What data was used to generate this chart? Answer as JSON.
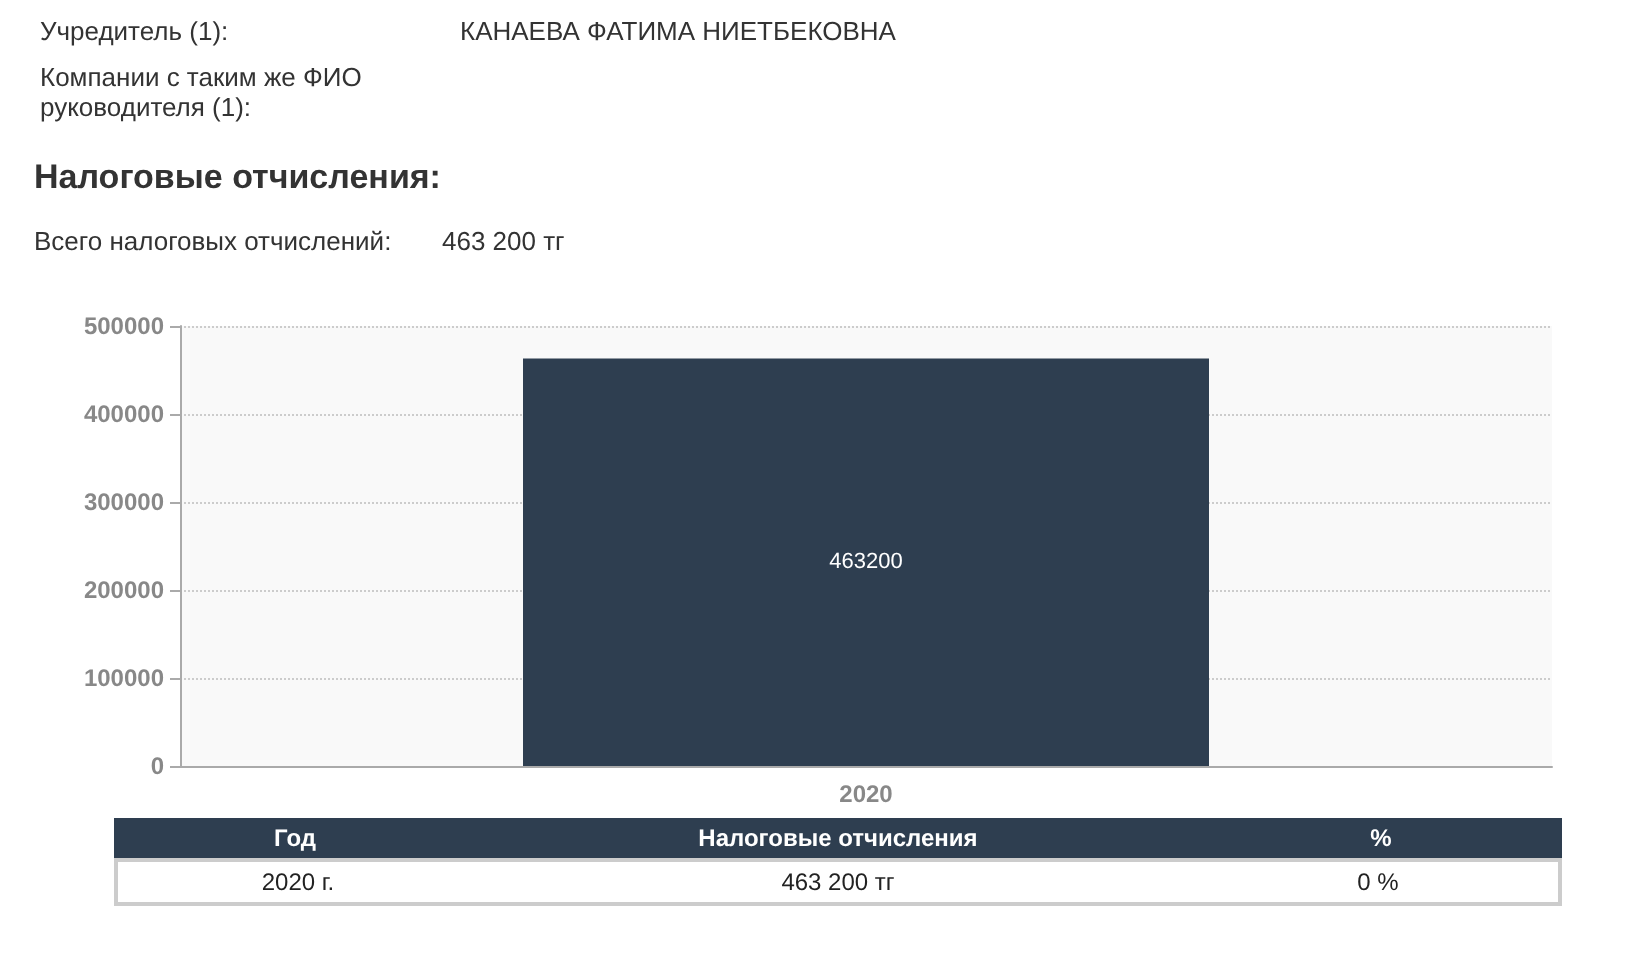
{
  "chart_data": {
    "type": "bar",
    "title": "Налоговые отчисления:",
    "annotations": [
      "Учредитель (1):",
      "КАНАЕВА ФАТИМА НИЕТБЕКОВНА",
      "Компании с таким же ФИО руководителя (1):",
      "Всего налоговых отчислений:",
      "463 200 тг",
      "Год",
      "Налоговые отчисления",
      "%",
      "2020 г.",
      "463 200 тг",
      "0 %"
    ],
    "categories": [
      "2020"
    ],
    "values": [
      463200
    ],
    "color": "#2e3e50",
    "ylim": [
      0,
      500000
    ],
    "yticks": [
      0,
      100000,
      200000,
      300000,
      400000,
      500000
    ],
    "grid": "y",
    "data_labels": true
  }
}
